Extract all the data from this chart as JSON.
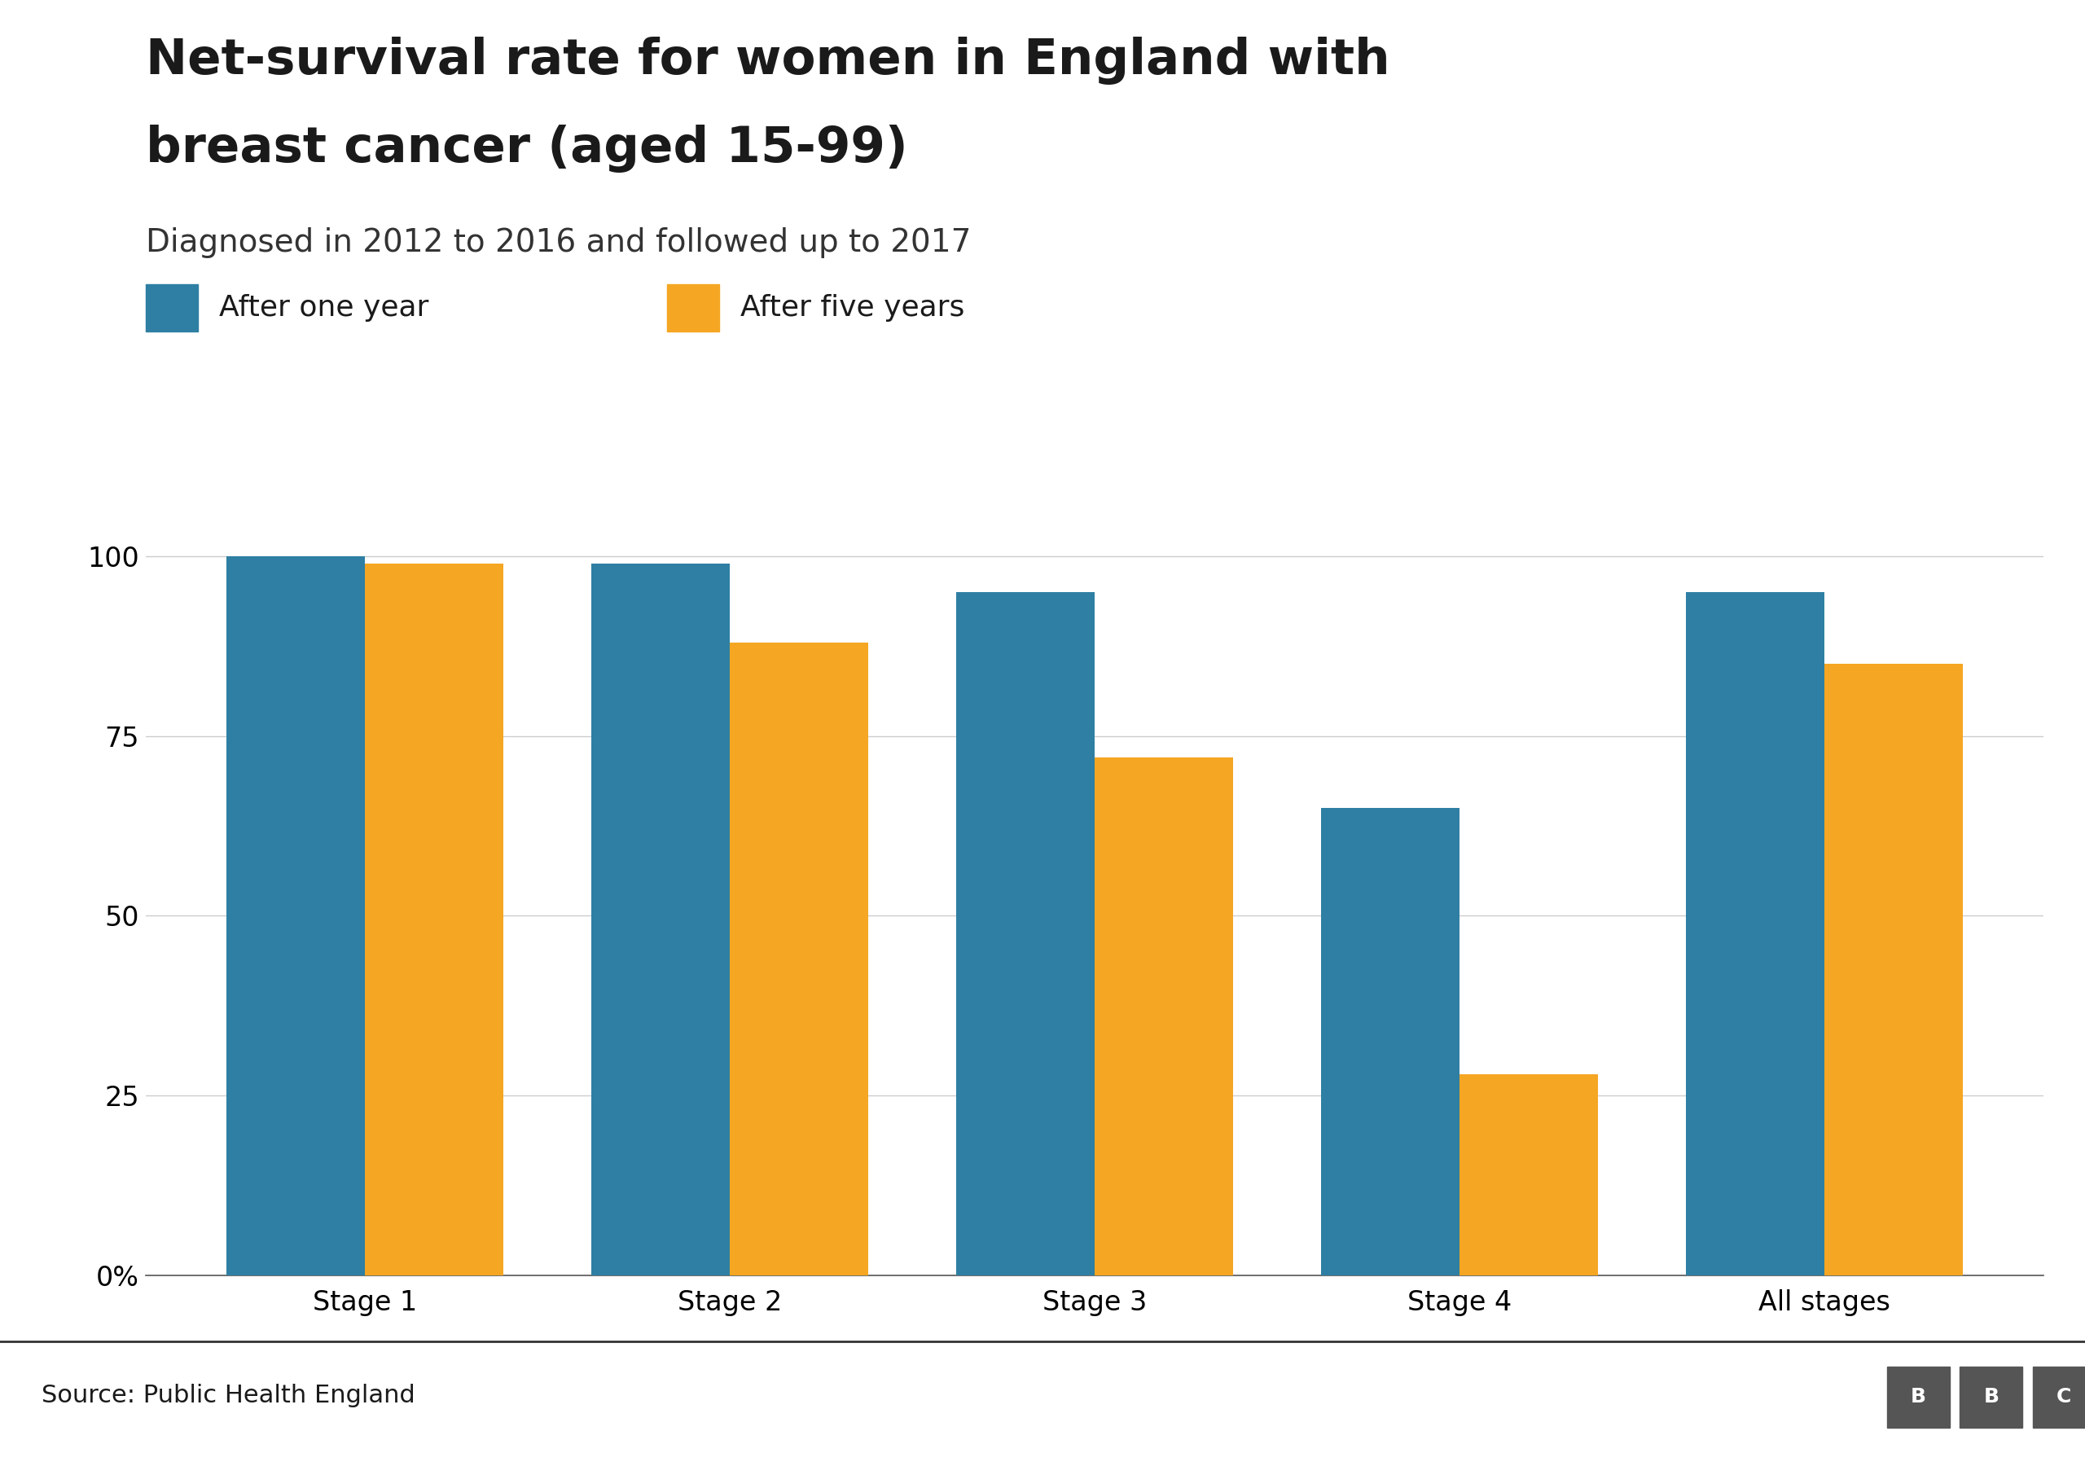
{
  "title_line1": "Net-survival rate for women in England with",
  "title_line2": "breast cancer (aged 15-99)",
  "subtitle": "Diagnosed in 2012 to 2016 and followed up to 2017",
  "legend_one_year": "After one year",
  "legend_five_years": "After five years",
  "categories": [
    "Stage 1",
    "Stage 2",
    "Stage 3",
    "Stage 4",
    "All stages"
  ],
  "one_year": [
    100,
    99,
    95,
    65,
    95
  ],
  "five_years": [
    99,
    88,
    72,
    28,
    85
  ],
  "color_one_year": "#2e7fa3",
  "color_five_years": "#f5a623",
  "background_color": "#ffffff",
  "ylim": [
    0,
    108
  ],
  "yticks": [
    0,
    25,
    50,
    75,
    100
  ],
  "ytick_labels": [
    "0%",
    "25",
    "50",
    "75",
    "100"
  ],
  "source_text": "Source: Public Health England",
  "bar_width": 0.38,
  "title_fontsize": 44,
  "subtitle_fontsize": 28,
  "legend_fontsize": 26,
  "tick_fontsize": 24,
  "source_fontsize": 22
}
